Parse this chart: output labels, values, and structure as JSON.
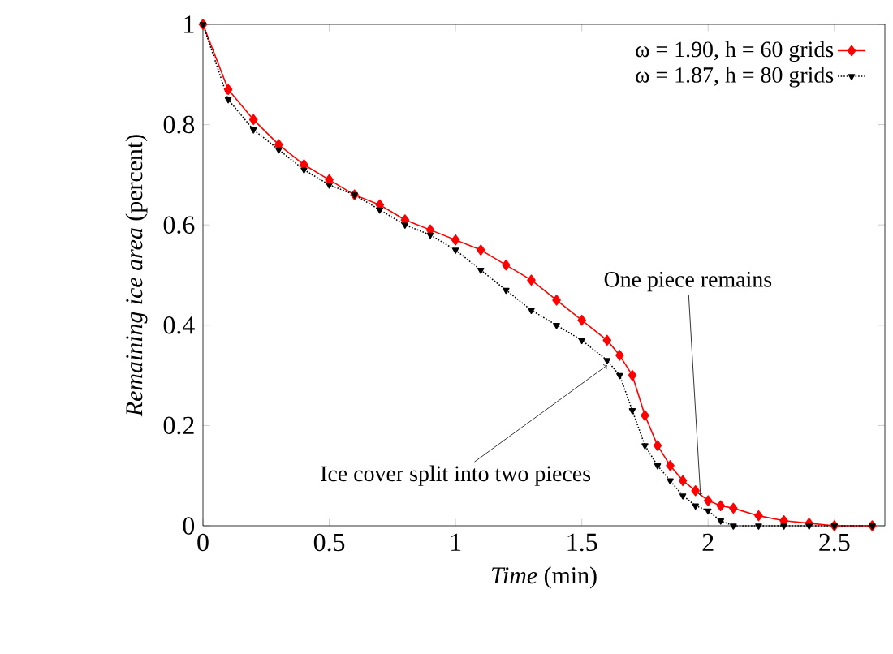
{
  "chart_data": {
    "type": "line",
    "xlabel": "*Time*  (min)",
    "ylabel": "*Remaining ice area* (percent)",
    "x": [
      0,
      0.1,
      0.2,
      0.3,
      0.4,
      0.5,
      0.6,
      0.7,
      0.8,
      0.9,
      1.0,
      1.1,
      1.2,
      1.3,
      1.4,
      1.5,
      1.6,
      1.65,
      1.7,
      1.75,
      1.8,
      1.85,
      1.9,
      1.95,
      2.0,
      2.05,
      2.1,
      2.2,
      2.3,
      2.4,
      2.5,
      2.65
    ],
    "series": [
      {
        "name": "ω = 1.90, h = 60 grids",
        "color": "#ff0000",
        "marker": "diamond",
        "line_style": "solid",
        "values": [
          1.0,
          0.87,
          0.81,
          0.76,
          0.72,
          0.69,
          0.66,
          0.64,
          0.61,
          0.59,
          0.57,
          0.55,
          0.52,
          0.49,
          0.45,
          0.41,
          0.37,
          0.34,
          0.3,
          0.22,
          0.16,
          0.12,
          0.09,
          0.07,
          0.05,
          0.04,
          0.035,
          0.02,
          0.01,
          0.005,
          0,
          0
        ]
      },
      {
        "name": "ω = 1.87, h = 80 grids",
        "color": "#000000",
        "marker": "triangle",
        "line_style": "dotted",
        "values": [
          1.0,
          0.85,
          0.79,
          0.75,
          0.71,
          0.68,
          0.66,
          0.63,
          0.6,
          0.58,
          0.55,
          0.51,
          0.47,
          0.43,
          0.4,
          0.37,
          0.33,
          0.3,
          0.23,
          0.16,
          0.12,
          0.09,
          0.06,
          0.04,
          0.03,
          0.01,
          0,
          0,
          0,
          0,
          0,
          0
        ]
      }
    ],
    "annotations": [
      {
        "text": "One piece remains",
        "x": 1.97,
        "y": 0.06
      },
      {
        "text": "Ice cover split into two pieces",
        "x": 1.6,
        "y": 0.32
      }
    ],
    "xlim": [
      0,
      2.7
    ],
    "ylim": [
      0,
      1
    ],
    "xticks": [
      0,
      0.5,
      1,
      1.5,
      2,
      2.5
    ],
    "yticks": [
      0,
      0.2,
      0.4,
      0.6,
      0.8,
      1
    ],
    "legend": "top right",
    "grid": false
  }
}
